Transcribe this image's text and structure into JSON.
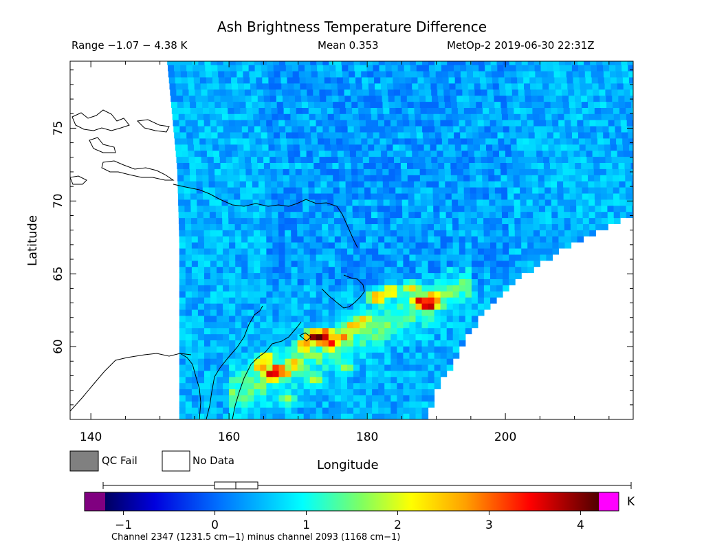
{
  "chart_data": {
    "type": "heatmap",
    "title": "Ash Brightness Temperature Difference",
    "stats": {
      "range_text": "Range −1.07 − 4.38 K",
      "mean_text": "Mean 0.353",
      "source_text": "MetOp-2 2019-06-30 22:31Z"
    },
    "xlabel": "Longitude",
    "ylabel": "Latitude",
    "xlim": [
      137,
      218.5
    ],
    "ylim": [
      55,
      79.6
    ],
    "xticks": [
      140,
      160,
      180,
      200
    ],
    "yticks": [
      60,
      65,
      70,
      75
    ],
    "value_range": [
      -1.07,
      4.38
    ],
    "mean": 0.353,
    "colorbar": {
      "min": -1.2,
      "max": 4.2,
      "ticks": [
        -1,
        0,
        1,
        2,
        3,
        4
      ],
      "unit": "K",
      "caption": "Channel 2347 (1231.5 cm−1) minus channel 2093 (1168 cm−1)"
    },
    "swath": {
      "left_edge_lon": [
        [
          79.6,
          151
        ],
        [
          72,
          152.5
        ],
        [
          67,
          152.8
        ],
        [
          55,
          152.8
        ]
      ],
      "right_edge_lon": [
        [
          69,
          218.5
        ],
        [
          67,
          210
        ],
        [
          65,
          203
        ],
        [
          62.5,
          197
        ],
        [
          60,
          193.5
        ],
        [
          57.5,
          190.5
        ],
        [
          55,
          188
        ]
      ]
    },
    "ash_plume_cells": [
      {
        "lon": 165.8,
        "lat": 57.9,
        "value": 3.9
      },
      {
        "lon": 166.6,
        "lat": 58.2,
        "value": 3.6
      },
      {
        "lon": 164.2,
        "lat": 58.5,
        "value": 3.0
      },
      {
        "lon": 167.5,
        "lat": 58.0,
        "value": 3.0
      },
      {
        "lon": 165.0,
        "lat": 59.0,
        "value": 2.6
      },
      {
        "lon": 169.0,
        "lat": 58.6,
        "value": 2.8
      },
      {
        "lon": 170.5,
        "lat": 59.9,
        "value": 3.0
      },
      {
        "lon": 171.9,
        "lat": 60.5,
        "value": 4.0
      },
      {
        "lon": 172.6,
        "lat": 60.4,
        "value": 4.2
      },
      {
        "lon": 173.4,
        "lat": 60.6,
        "value": 3.9
      },
      {
        "lon": 174.2,
        "lat": 60.0,
        "value": 3.5
      },
      {
        "lon": 176.0,
        "lat": 60.5,
        "value": 3.0
      },
      {
        "lon": 177.5,
        "lat": 61.2,
        "value": 2.8
      },
      {
        "lon": 179.0,
        "lat": 61.6,
        "value": 2.6
      },
      {
        "lon": 181.0,
        "lat": 63.2,
        "value": 3.0
      },
      {
        "lon": 183.0,
        "lat": 63.6,
        "value": 2.6
      },
      {
        "lon": 186.0,
        "lat": 63.8,
        "value": 2.4
      },
      {
        "lon": 187.3,
        "lat": 62.9,
        "value": 3.8
      },
      {
        "lon": 188.4,
        "lat": 62.7,
        "value": 4.2
      },
      {
        "lon": 189.0,
        "lat": 63.1,
        "value": 3.5
      },
      {
        "lon": 172.0,
        "lat": 57.6,
        "value": 2.0
      },
      {
        "lon": 176.5,
        "lat": 58.4,
        "value": 1.8
      },
      {
        "lon": 181.5,
        "lat": 60.8,
        "value": 1.6
      },
      {
        "lon": 168.0,
        "lat": 56.2,
        "value": 1.8
      },
      {
        "lon": 162.5,
        "lat": 56.5,
        "value": 1.6
      }
    ],
    "legend": [
      {
        "label": "QC Fail",
        "color": "#808080"
      },
      {
        "label": "No Data",
        "color": "#ffffff"
      }
    ]
  }
}
